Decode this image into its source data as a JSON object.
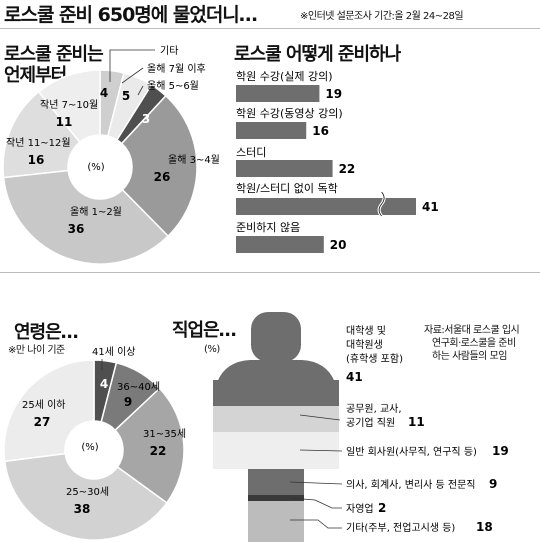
{
  "header": {
    "title": "로스쿨 준비 650명에 물었더니…",
    "note": "※인터넷 설문조사 기간:올 2월 24~28일"
  },
  "percent_unit": "(%)",
  "timing": {
    "title_line1": "로스쿨 준비는",
    "title_line2": "언제부터"
  },
  "methods": {
    "title": "로스쿨 어떻게 준비하나"
  },
  "age": {
    "title": "연령은…",
    "note": "※만 나이 기준"
  },
  "job": {
    "title": "직업은…",
    "unit": "(%)",
    "source_line1": "자료:서울대 로스쿨 입시",
    "source_line2": "연구회·로스쿨을 준비",
    "source_line3": "하는 사람들의 모임"
  },
  "colors": {
    "dark": "#595959",
    "mid": "#9c9c9c",
    "light": "#c8c8c8",
    "lighter": "#dcdcdc",
    "pale": "#ececec",
    "bar": "#6e6e6e"
  },
  "chart_data": [
    {
      "type": "pie",
      "title": "로스쿨 준비는 언제부터",
      "unit": "(%)",
      "slices": [
        {
          "label": "기타",
          "value": 4,
          "color": "#cfcfcf"
        },
        {
          "label": "올해 7월 이후",
          "value": 5,
          "color": "#eaeaea"
        },
        {
          "label": "올해 5~6월",
          "value": 3,
          "color": "#4f4f4f"
        },
        {
          "label": "올해 3~4월",
          "value": 26,
          "color": "#9a9a9a"
        },
        {
          "label": "올해 1~2월",
          "value": 36,
          "color": "#c8c8c8"
        },
        {
          "label": "작년 11~12월",
          "value": 16,
          "color": "#dedede"
        },
        {
          "label": "작년 7~10월",
          "value": 11,
          "color": "#eeeeee"
        }
      ]
    },
    {
      "type": "bar",
      "title": "로스쿨 어떻게 준비하나",
      "categories": [
        "학원 수강(실제 강의)",
        "학원 수강(동영상 강의)",
        "스터디",
        "학원/스터디 없이 독학",
        "준비하지 않음"
      ],
      "values": [
        19,
        16,
        22,
        41,
        20
      ],
      "axis_break_on": "학원/스터디 없이 독학"
    },
    {
      "type": "pie",
      "title": "연령은…",
      "note": "※만 나이 기준",
      "unit": "(%)",
      "slices": [
        {
          "label": "41세 이상",
          "value": 4,
          "color": "#4f4f4f"
        },
        {
          "label": "36~40세",
          "value": 9,
          "color": "#7a7a7a"
        },
        {
          "label": "31~35세",
          "value": 22,
          "color": "#a6a6a6"
        },
        {
          "label": "25~30세",
          "value": 38,
          "color": "#d2d2d2"
        },
        {
          "label": "25세 이하",
          "value": 27,
          "color": "#ececec"
        }
      ]
    },
    {
      "type": "bar",
      "title": "직업은…",
      "unit": "(%)",
      "categories": [
        "대학생 및 대학원생 (휴학생 포함)",
        "공무원, 교사, 공기업 직원",
        "일반 회사원(사무직, 연구직 등)",
        "의사, 회계사, 변리사 등 전문직",
        "자영업",
        "기타(주부, 전업고시생 등)"
      ],
      "values": [
        41,
        11,
        19,
        9,
        2,
        18
      ]
    }
  ]
}
